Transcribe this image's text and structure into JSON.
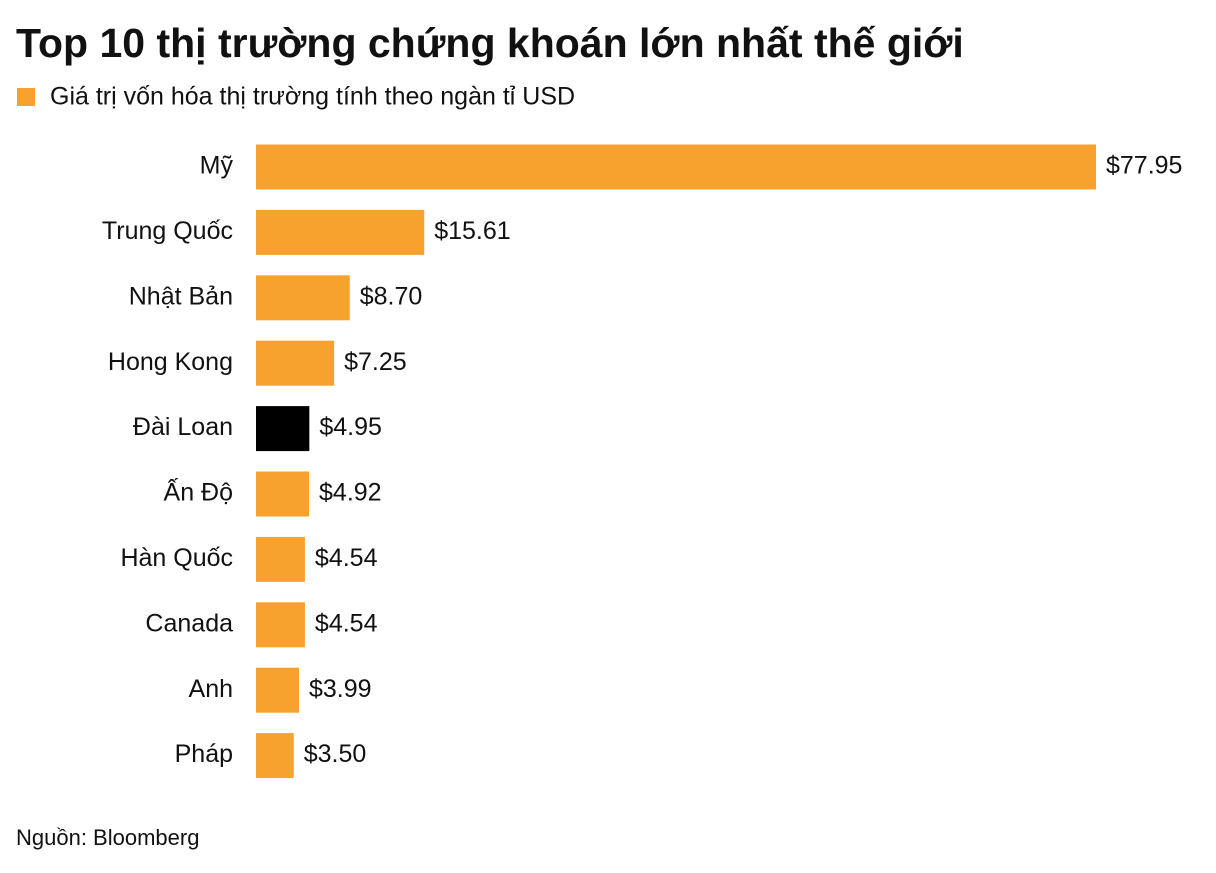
{
  "chart_data": {
    "type": "bar",
    "orientation": "horizontal",
    "title": "Top 10 thị trường chứng khoán lớn nhất thế giới",
    "source": "Nguồn: Bloomberg",
    "categories": [
      "Mỹ",
      "Trung Quốc",
      "Nhật Bản",
      "Hong Kong",
      "Đài Loan",
      "Ấn Độ",
      "Hàn Quốc",
      "Canada",
      "Anh",
      "Pháp"
    ],
    "series": [
      {
        "name": "Giá trị vốn hóa thị trường tính theo ngàn tỉ USD",
        "color": "#f7a12f",
        "colors": [
          "#f7a12f",
          "#f7a12f",
          "#f7a12f",
          "#f7a12f",
          "#000000",
          "#f7a12f",
          "#f7a12f",
          "#f7a12f",
          "#f7a12f",
          "#f7a12f"
        ],
        "values": [
          77.95,
          15.61,
          8.7,
          7.25,
          4.95,
          4.92,
          4.54,
          4.54,
          3.99,
          3.5
        ],
        "value_labels": [
          "$77.95",
          "$15.61",
          "$8.70",
          "$7.25",
          "$4.95",
          "$4.92",
          "$4.54",
          "$4.54",
          "$3.99",
          "$3.50"
        ]
      }
    ],
    "legend": "top-left"
  }
}
